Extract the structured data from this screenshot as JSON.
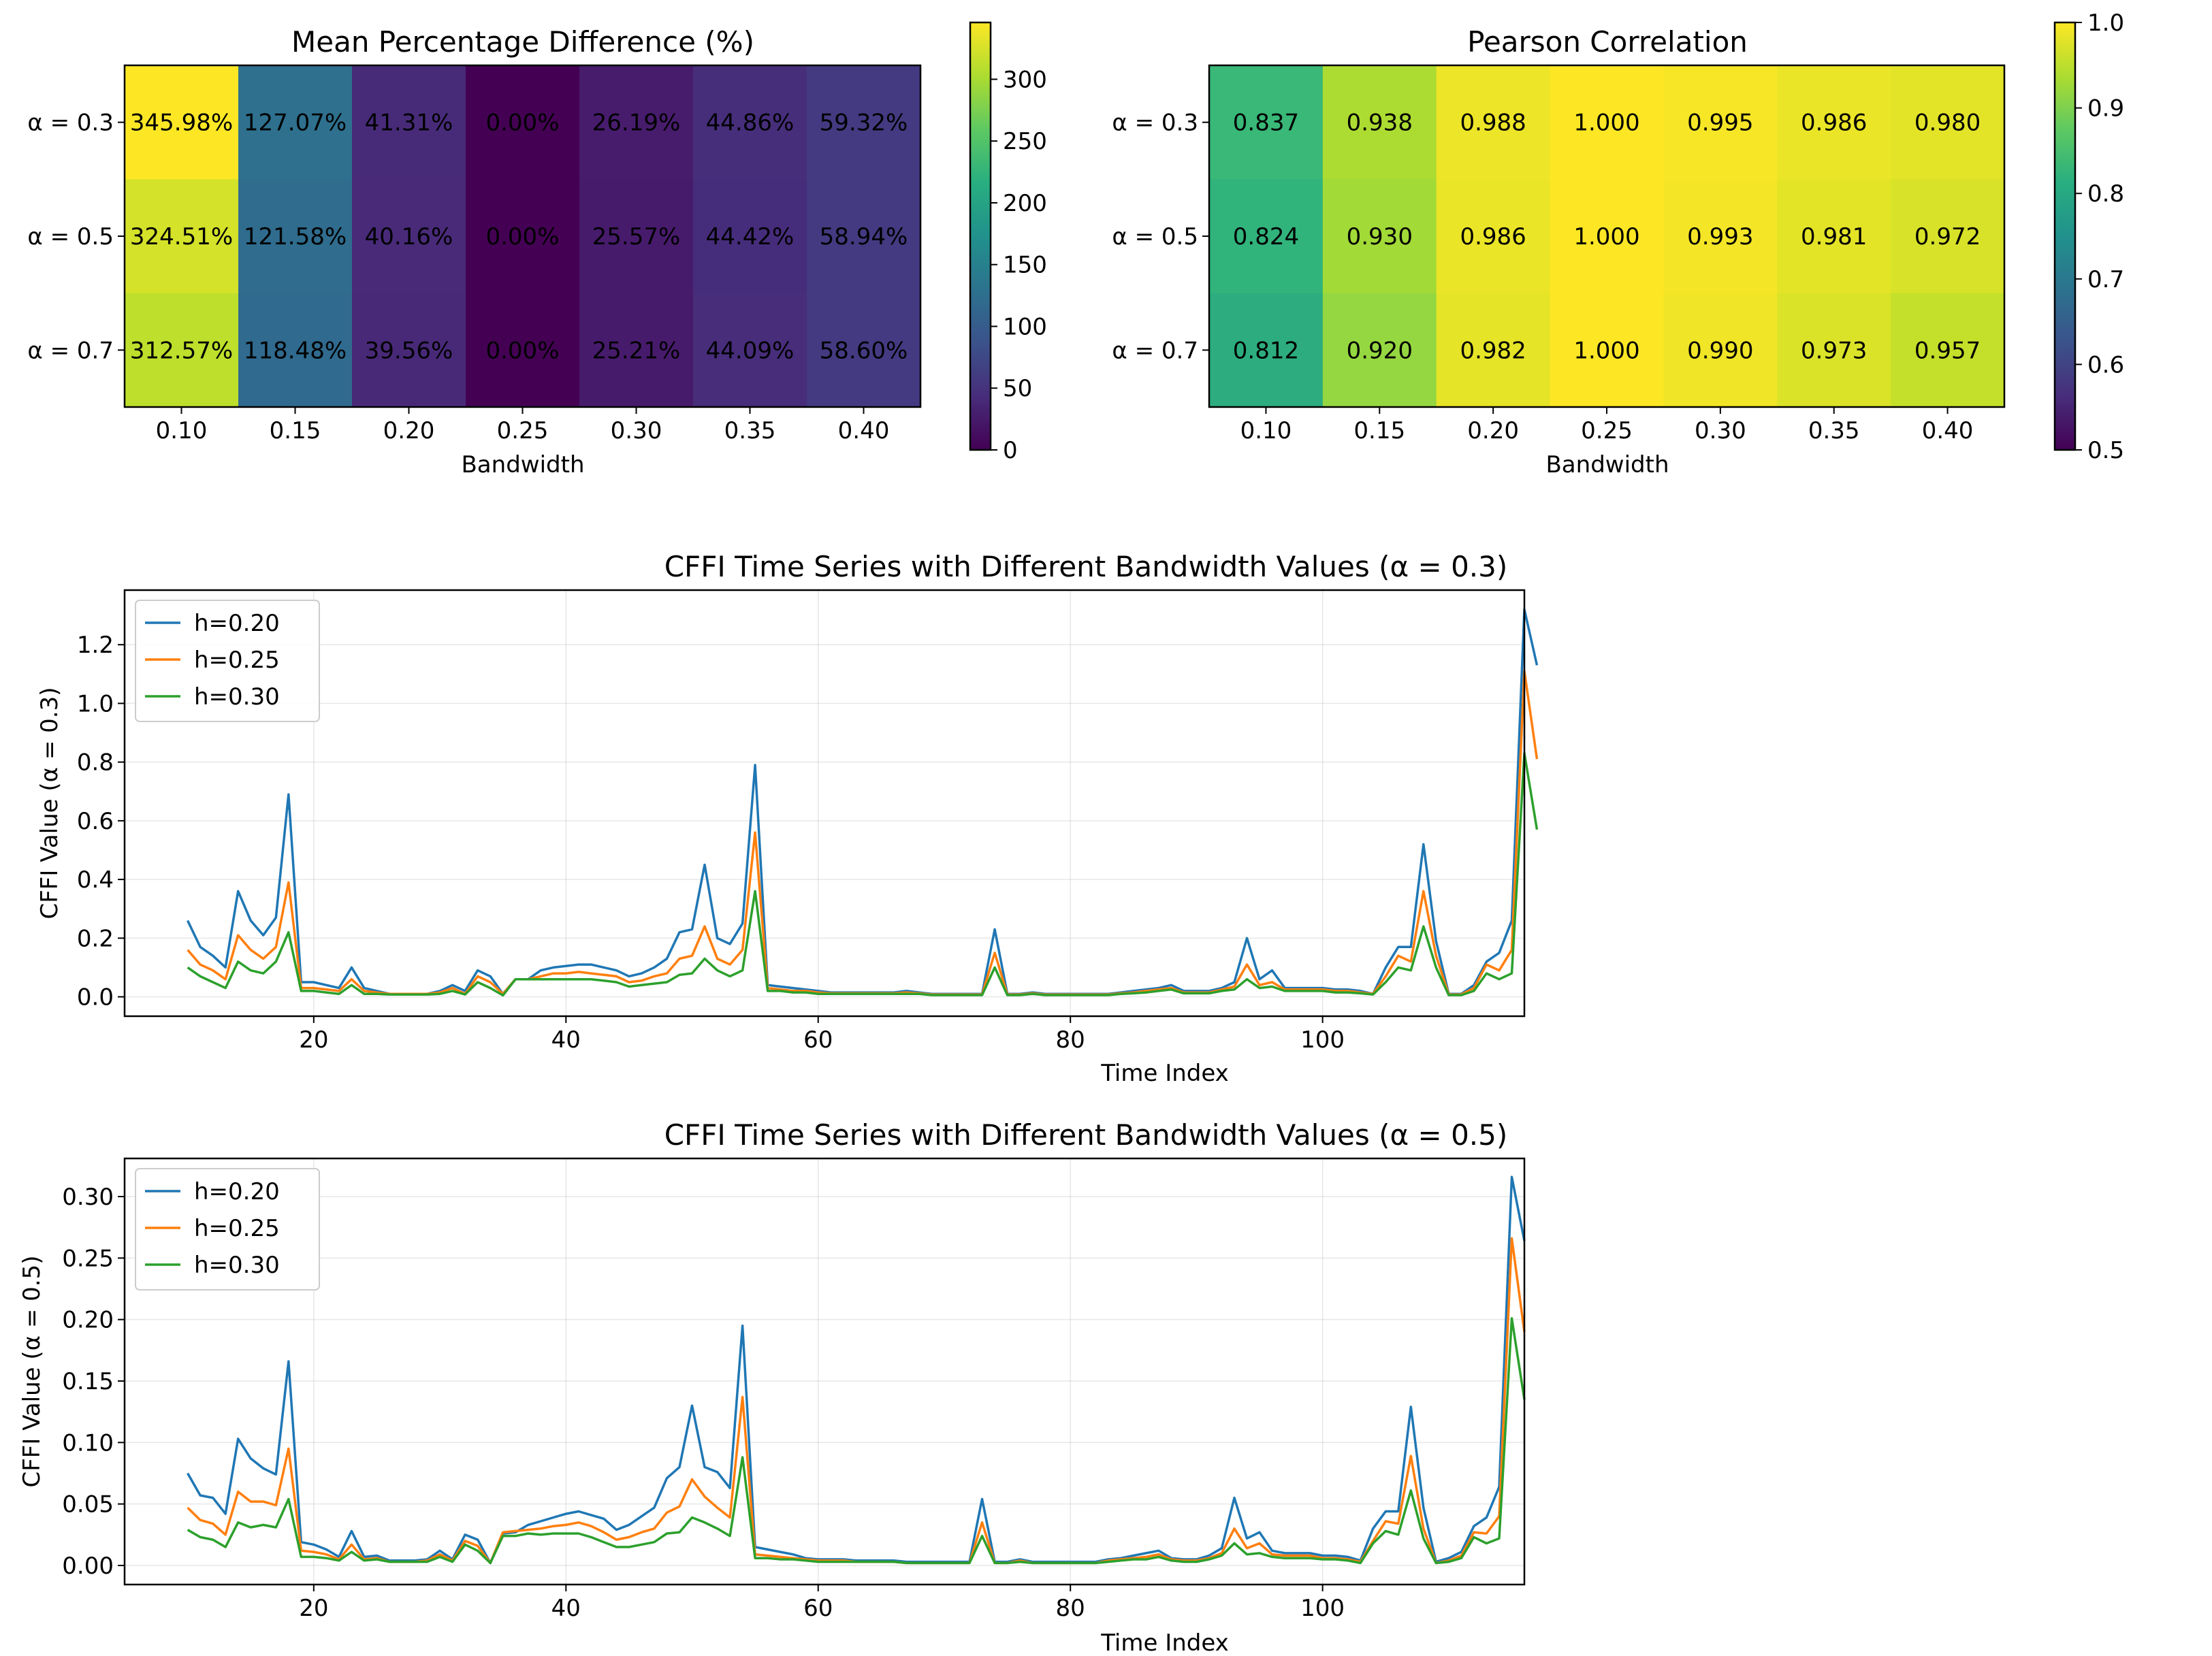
{
  "chart_data": [
    {
      "type": "heatmap",
      "title": "Mean Percentage Difference (%)",
      "xlabel": "Bandwidth",
      "x_categories": [
        "0.10",
        "0.15",
        "0.20",
        "0.25",
        "0.30",
        "0.35",
        "0.40"
      ],
      "y_categories": [
        "α = 0.3",
        "α = 0.5",
        "α = 0.7"
      ],
      "values": [
        [
          345.98,
          127.07,
          41.31,
          0.0,
          26.19,
          44.86,
          59.32
        ],
        [
          324.51,
          121.58,
          40.16,
          0.0,
          25.57,
          44.42,
          58.94
        ],
        [
          312.57,
          118.48,
          39.56,
          0.0,
          25.21,
          44.09,
          58.6
        ]
      ],
      "cell_labels": [
        [
          "345.98%",
          "127.07%",
          "41.31%",
          "0.00%",
          "26.19%",
          "44.86%",
          "59.32%"
        ],
        [
          "324.51%",
          "121.58%",
          "40.16%",
          "0.00%",
          "25.57%",
          "44.42%",
          "58.94%"
        ],
        [
          "312.57%",
          "118.48%",
          "39.56%",
          "0.00%",
          "25.21%",
          "44.09%",
          "58.60%"
        ]
      ],
      "colormap": "viridis",
      "vlim": [
        0,
        345.98
      ],
      "colorbar_ticks": [
        "0",
        "50",
        "100",
        "150",
        "200",
        "250",
        "300"
      ]
    },
    {
      "type": "heatmap",
      "title": "Pearson Correlation",
      "xlabel": "Bandwidth",
      "x_categories": [
        "0.10",
        "0.15",
        "0.20",
        "0.25",
        "0.30",
        "0.35",
        "0.40"
      ],
      "y_categories": [
        "α = 0.3",
        "α = 0.5",
        "α = 0.7"
      ],
      "values": [
        [
          0.837,
          0.938,
          0.988,
          1.0,
          0.995,
          0.986,
          0.98
        ],
        [
          0.824,
          0.93,
          0.986,
          1.0,
          0.993,
          0.981,
          0.972
        ],
        [
          0.812,
          0.92,
          0.982,
          1.0,
          0.99,
          0.973,
          0.957
        ]
      ],
      "cell_labels": [
        [
          "0.837",
          "0.938",
          "0.988",
          "1.000",
          "0.995",
          "0.986",
          "0.980"
        ],
        [
          "0.824",
          "0.930",
          "0.986",
          "1.000",
          "0.993",
          "0.981",
          "0.972"
        ],
        [
          "0.812",
          "0.920",
          "0.982",
          "1.000",
          "0.990",
          "0.973",
          "0.957"
        ]
      ],
      "colormap": "viridis",
      "vlim": [
        0.5,
        1.0
      ],
      "colorbar_ticks": [
        "0.5",
        "0.6",
        "0.7",
        "0.8",
        "0.9",
        "1.0"
      ]
    },
    {
      "type": "line",
      "title": "CFFI Time Series with Different Bandwidth Values (α = 0.3)",
      "xlabel": "Time Index",
      "ylabel": "CFFI Value (α = 0.3)",
      "xlim": [
        5,
        116
      ],
      "ylim": [
        -0.066,
        1.386
      ],
      "xticks": [
        20,
        40,
        60,
        80,
        100
      ],
      "yticks": [
        "0.0",
        "0.2",
        "0.4",
        "0.6",
        "0.8",
        "1.0",
        "1.2"
      ],
      "grid": true,
      "legend_position": "top-left",
      "x_start": 10,
      "series": [
        {
          "name": "h=0.20",
          "color": "#1f77b4",
          "values": [
            0.26,
            0.17,
            0.14,
            0.1,
            0.36,
            0.26,
            0.21,
            0.27,
            0.69,
            0.05,
            0.05,
            0.04,
            0.03,
            0.1,
            0.03,
            0.02,
            0.01,
            0.01,
            0.01,
            0.01,
            0.02,
            0.04,
            0.02,
            0.09,
            0.07,
            0.01,
            0.06,
            0.06,
            0.09,
            0.1,
            0.105,
            0.11,
            0.11,
            0.1,
            0.09,
            0.07,
            0.08,
            0.1,
            0.13,
            0.22,
            0.23,
            0.45,
            0.2,
            0.18,
            0.25,
            0.79,
            0.04,
            0.035,
            0.03,
            0.025,
            0.02,
            0.015,
            0.015,
            0.015,
            0.015,
            0.015,
            0.015,
            0.02,
            0.015,
            0.01,
            0.01,
            0.01,
            0.01,
            0.01,
            0.23,
            0.01,
            0.01,
            0.015,
            0.01,
            0.01,
            0.01,
            0.01,
            0.01,
            0.01,
            0.015,
            0.02,
            0.025,
            0.03,
            0.04,
            0.02,
            0.02,
            0.02,
            0.03,
            0.05,
            0.2,
            0.06,
            0.09,
            0.03,
            0.03,
            0.03,
            0.03,
            0.025,
            0.025,
            0.02,
            0.01,
            0.1,
            0.17,
            0.17,
            0.52,
            0.19,
            0.01,
            0.01,
            0.04,
            0.12,
            0.15,
            0.26,
            1.32,
            1.13
          ]
        },
        {
          "name": "h=0.25",
          "color": "#ff7f0e",
          "values": [
            0.16,
            0.11,
            0.09,
            0.06,
            0.21,
            0.16,
            0.13,
            0.17,
            0.39,
            0.03,
            0.03,
            0.025,
            0.02,
            0.06,
            0.02,
            0.015,
            0.01,
            0.01,
            0.01,
            0.01,
            0.015,
            0.03,
            0.01,
            0.07,
            0.05,
            0.01,
            0.06,
            0.06,
            0.07,
            0.08,
            0.08,
            0.085,
            0.08,
            0.075,
            0.07,
            0.05,
            0.055,
            0.07,
            0.08,
            0.13,
            0.14,
            0.24,
            0.13,
            0.11,
            0.16,
            0.56,
            0.03,
            0.025,
            0.02,
            0.02,
            0.015,
            0.012,
            0.012,
            0.012,
            0.012,
            0.012,
            0.012,
            0.015,
            0.012,
            0.008,
            0.008,
            0.008,
            0.008,
            0.008,
            0.15,
            0.008,
            0.008,
            0.012,
            0.008,
            0.008,
            0.008,
            0.008,
            0.008,
            0.008,
            0.012,
            0.015,
            0.02,
            0.025,
            0.03,
            0.015,
            0.015,
            0.015,
            0.025,
            0.035,
            0.11,
            0.04,
            0.05,
            0.025,
            0.025,
            0.025,
            0.025,
            0.02,
            0.02,
            0.015,
            0.01,
            0.07,
            0.14,
            0.12,
            0.36,
            0.14,
            0.008,
            0.008,
            0.03,
            0.11,
            0.09,
            0.16,
            1.11,
            0.81
          ]
        },
        {
          "name": "h=0.30",
          "color": "#2ca02c",
          "values": [
            0.1,
            0.07,
            0.05,
            0.03,
            0.12,
            0.09,
            0.08,
            0.12,
            0.22,
            0.02,
            0.02,
            0.015,
            0.01,
            0.04,
            0.01,
            0.01,
            0.008,
            0.008,
            0.008,
            0.008,
            0.01,
            0.02,
            0.008,
            0.05,
            0.03,
            0.005,
            0.06,
            0.06,
            0.06,
            0.06,
            0.06,
            0.06,
            0.06,
            0.055,
            0.05,
            0.035,
            0.04,
            0.045,
            0.05,
            0.075,
            0.08,
            0.13,
            0.09,
            0.07,
            0.09,
            0.36,
            0.02,
            0.02,
            0.015,
            0.015,
            0.01,
            0.01,
            0.01,
            0.01,
            0.01,
            0.01,
            0.01,
            0.01,
            0.01,
            0.006,
            0.006,
            0.006,
            0.006,
            0.006,
            0.1,
            0.006,
            0.006,
            0.01,
            0.006,
            0.006,
            0.006,
            0.006,
            0.006,
            0.006,
            0.01,
            0.012,
            0.015,
            0.02,
            0.025,
            0.012,
            0.012,
            0.012,
            0.02,
            0.025,
            0.06,
            0.03,
            0.035,
            0.02,
            0.02,
            0.02,
            0.02,
            0.015,
            0.015,
            0.012,
            0.008,
            0.05,
            0.1,
            0.09,
            0.24,
            0.1,
            0.006,
            0.006,
            0.02,
            0.08,
            0.06,
            0.08,
            0.83,
            0.57
          ]
        }
      ]
    },
    {
      "type": "line",
      "title": "CFFI Time Series with Different Bandwidth Values (α = 0.5)",
      "xlabel": "Time Index",
      "ylabel": "CFFI Value (α = 0.5)",
      "xlim": [
        5,
        116
      ],
      "ylim": [
        -0.0155,
        0.331
      ],
      "xticks": [
        20,
        40,
        60,
        80,
        100
      ],
      "yticks": [
        "0.00",
        "0.05",
        "0.10",
        "0.15",
        "0.20",
        "0.25",
        "0.30"
      ],
      "grid": true,
      "legend_position": "top-left",
      "x_start": 10,
      "series": [
        {
          "name": "h=0.20",
          "color": "#1f77b4",
          "values": [
            0.075,
            0.057,
            0.055,
            0.042,
            0.103,
            0.087,
            0.079,
            0.074,
            0.166,
            0.019,
            0.017,
            0.013,
            0.007,
            0.028,
            0.007,
            0.008,
            0.004,
            0.004,
            0.004,
            0.005,
            0.012,
            0.005,
            0.025,
            0.021,
            0.002,
            0.026,
            0.027,
            0.033,
            0.036,
            0.039,
            0.042,
            0.044,
            0.041,
            0.038,
            0.029,
            0.033,
            0.04,
            0.047,
            0.071,
            0.08,
            0.13,
            0.08,
            0.076,
            0.063,
            0.195,
            0.015,
            0.013,
            0.011,
            0.009,
            0.006,
            0.005,
            0.005,
            0.005,
            0.004,
            0.004,
            0.004,
            0.004,
            0.003,
            0.003,
            0.003,
            0.003,
            0.003,
            0.003,
            0.054,
            0.003,
            0.003,
            0.005,
            0.003,
            0.003,
            0.003,
            0.003,
            0.003,
            0.003,
            0.005,
            0.006,
            0.008,
            0.01,
            0.012,
            0.006,
            0.005,
            0.005,
            0.008,
            0.014,
            0.055,
            0.022,
            0.027,
            0.012,
            0.01,
            0.01,
            0.01,
            0.008,
            0.008,
            0.007,
            0.004,
            0.03,
            0.044,
            0.044,
            0.129,
            0.047,
            0.003,
            0.006,
            0.011,
            0.032,
            0.039,
            0.064,
            0.316,
            0.264
          ]
        },
        {
          "name": "h=0.25",
          "color": "#ff7f0e",
          "values": [
            0.047,
            0.037,
            0.034,
            0.025,
            0.06,
            0.052,
            0.052,
            0.049,
            0.095,
            0.012,
            0.011,
            0.009,
            0.005,
            0.017,
            0.005,
            0.006,
            0.003,
            0.003,
            0.003,
            0.004,
            0.009,
            0.004,
            0.02,
            0.016,
            0.002,
            0.027,
            0.028,
            0.029,
            0.03,
            0.032,
            0.033,
            0.035,
            0.032,
            0.027,
            0.021,
            0.023,
            0.027,
            0.03,
            0.043,
            0.048,
            0.07,
            0.056,
            0.047,
            0.039,
            0.137,
            0.009,
            0.008,
            0.007,
            0.006,
            0.005,
            0.004,
            0.004,
            0.004,
            0.003,
            0.003,
            0.003,
            0.003,
            0.002,
            0.002,
            0.002,
            0.002,
            0.002,
            0.002,
            0.035,
            0.002,
            0.002,
            0.004,
            0.002,
            0.002,
            0.002,
            0.002,
            0.002,
            0.002,
            0.004,
            0.005,
            0.006,
            0.007,
            0.009,
            0.005,
            0.004,
            0.004,
            0.006,
            0.01,
            0.03,
            0.014,
            0.018,
            0.009,
            0.008,
            0.008,
            0.008,
            0.006,
            0.006,
            0.005,
            0.003,
            0.02,
            0.036,
            0.034,
            0.089,
            0.03,
            0.002,
            0.004,
            0.008,
            0.027,
            0.026,
            0.04,
            0.266,
            0.19
          ]
        },
        {
          "name": "h=0.30",
          "color": "#2ca02c",
          "values": [
            0.029,
            0.023,
            0.021,
            0.015,
            0.035,
            0.031,
            0.033,
            0.031,
            0.054,
            0.007,
            0.007,
            0.006,
            0.004,
            0.011,
            0.004,
            0.005,
            0.003,
            0.003,
            0.003,
            0.003,
            0.007,
            0.003,
            0.017,
            0.012,
            0.002,
            0.024,
            0.024,
            0.026,
            0.025,
            0.026,
            0.026,
            0.026,
            0.023,
            0.019,
            0.015,
            0.015,
            0.017,
            0.019,
            0.026,
            0.027,
            0.039,
            0.035,
            0.03,
            0.024,
            0.088,
            0.006,
            0.006,
            0.005,
            0.005,
            0.004,
            0.003,
            0.003,
            0.003,
            0.003,
            0.003,
            0.003,
            0.003,
            0.002,
            0.002,
            0.002,
            0.002,
            0.002,
            0.002,
            0.024,
            0.002,
            0.002,
            0.003,
            0.002,
            0.002,
            0.002,
            0.002,
            0.002,
            0.002,
            0.003,
            0.004,
            0.005,
            0.005,
            0.007,
            0.004,
            0.003,
            0.003,
            0.005,
            0.008,
            0.018,
            0.009,
            0.01,
            0.007,
            0.006,
            0.006,
            0.006,
            0.005,
            0.005,
            0.004,
            0.002,
            0.018,
            0.028,
            0.025,
            0.061,
            0.022,
            0.002,
            0.003,
            0.006,
            0.023,
            0.018,
            0.022,
            0.201,
            0.135
          ]
        }
      ]
    }
  ]
}
